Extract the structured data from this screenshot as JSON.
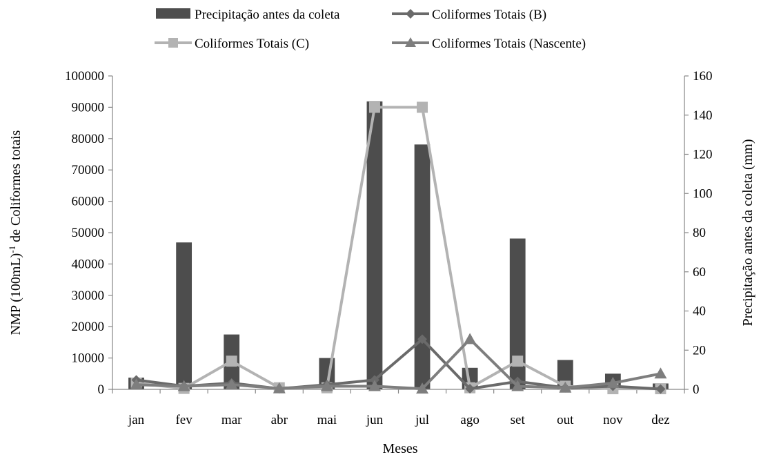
{
  "chart_data": {
    "type": "bar+line",
    "categories": [
      "jan",
      "fev",
      "mar",
      "abr",
      "mai",
      "jun",
      "jul",
      "ago",
      "set",
      "out",
      "nov",
      "dez"
    ],
    "xlabel": "Meses",
    "ylabel_left_main": "NMP  (100mL)",
    "ylabel_left_sup": "-1",
    "ylabel_left_rest": " de Coliformes totais",
    "ylabel_right": "Precipitação antes da coleta (mm)",
    "ylim_left": [
      0,
      100000
    ],
    "yticks_left": [
      "0",
      "10000",
      "20000",
      "30000",
      "40000",
      "50000",
      "60000",
      "70000",
      "80000",
      "90000",
      "100000"
    ],
    "ylim_right": [
      0,
      160
    ],
    "yticks_right": [
      "0",
      "20",
      "40",
      "60",
      "80",
      "100",
      "120",
      "140",
      "160"
    ],
    "grid": false,
    "legend_position": "top",
    "bars": {
      "name": "Precipitação antes da coleta",
      "axis": "right",
      "color": "#4d4d4d",
      "values": [
        6,
        75,
        28,
        1,
        16,
        147,
        125,
        11,
        77,
        15,
        8,
        3
      ]
    },
    "series": [
      {
        "name": "Coliformes Totais (B)",
        "axis": "left",
        "marker": "diamond",
        "color": "#6a6a6a",
        "values": [
          3000,
          1000,
          2000,
          200,
          1500,
          3000,
          16000,
          200,
          2500,
          500,
          1000,
          100
        ]
      },
      {
        "name": "Coliformes Totais (C)",
        "axis": "left",
        "marker": "square",
        "color": "#b3b3b3",
        "values": [
          2000,
          300,
          9000,
          500,
          500,
          90000,
          90000,
          500,
          9000,
          1000,
          200,
          200
        ]
      },
      {
        "name": "Coliformes Totais (Nascente)",
        "axis": "left",
        "marker": "triangle",
        "color": "#7e7e7e",
        "values": [
          1500,
          1000,
          1500,
          300,
          1000,
          1000,
          200,
          16000,
          1000,
          500,
          2000,
          5000
        ]
      }
    ]
  }
}
